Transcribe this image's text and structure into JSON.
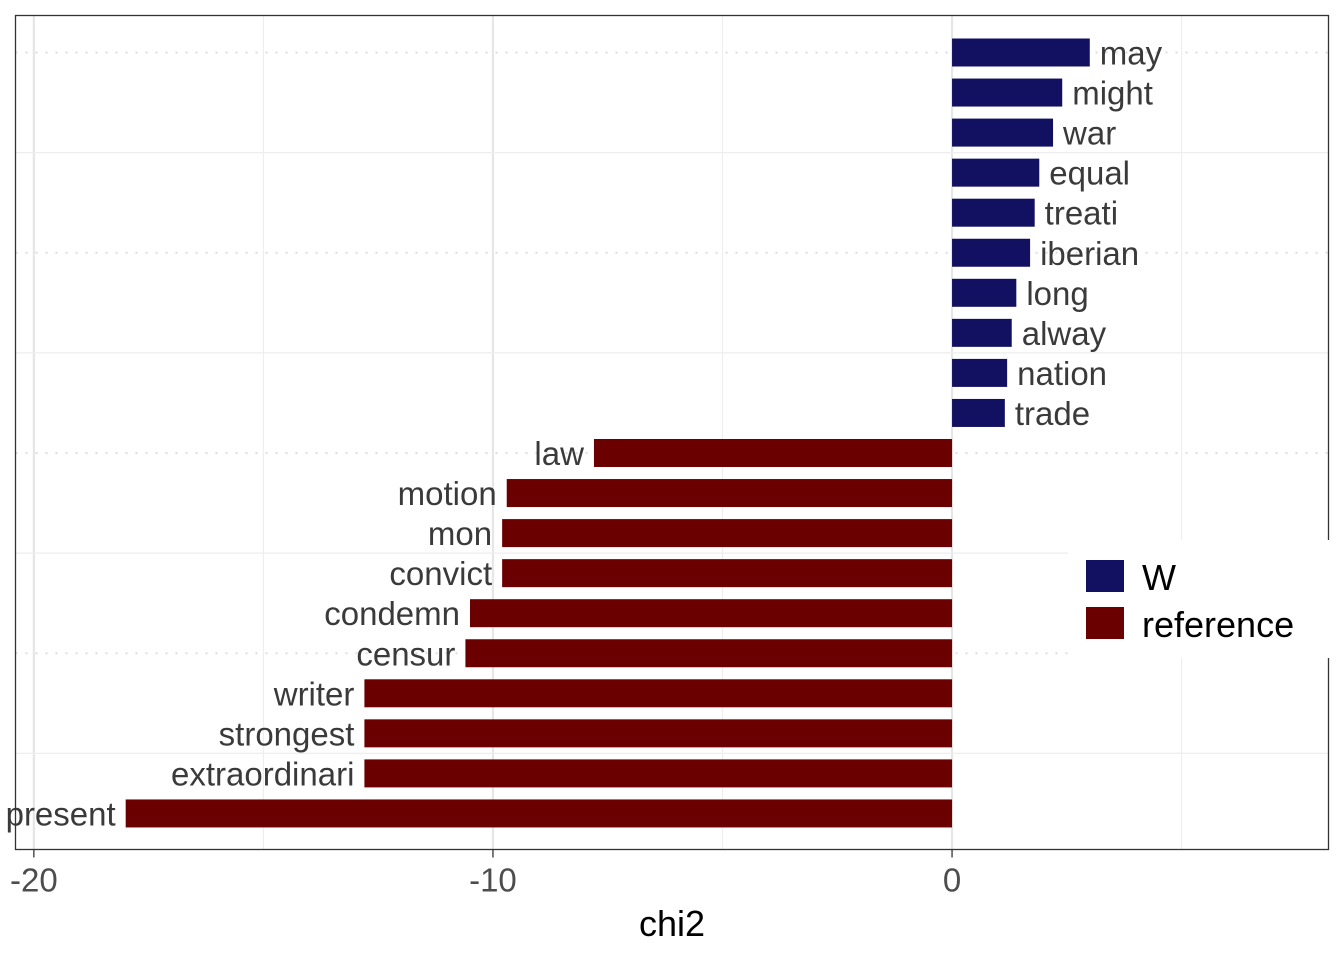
{
  "chart_data": {
    "type": "bar",
    "orientation": "horizontal",
    "title": "",
    "xlabel": "chi2",
    "ylabel": "",
    "xlim": [
      -20.4,
      8.2
    ],
    "xticks": [
      -20,
      -10,
      0
    ],
    "xtick_labels": [
      "-20",
      "-10",
      "0"
    ],
    "grid": true,
    "legend_position": "right",
    "categories": [
      "may",
      "might",
      "war",
      "equal",
      "treati",
      "iberian",
      "long",
      "alway",
      "nation",
      "trade",
      "law",
      "motion",
      "mon",
      "convict",
      "condemn",
      "censur",
      "writer",
      "strongest",
      "extraordinari",
      "present"
    ],
    "values": [
      3.0,
      2.4,
      2.2,
      1.9,
      1.8,
      1.7,
      1.4,
      1.3,
      1.2,
      1.15,
      -7.8,
      -9.7,
      -9.8,
      -9.8,
      -10.5,
      -10.6,
      -12.8,
      -12.8,
      -12.8,
      -18.0
    ],
    "groups": [
      "W",
      "W",
      "W",
      "W",
      "W",
      "W",
      "W",
      "W",
      "W",
      "W",
      "reference",
      "reference",
      "reference",
      "reference",
      "reference",
      "reference",
      "reference",
      "reference",
      "reference",
      "reference"
    ],
    "series": [
      {
        "name": "W",
        "color": "#121060"
      },
      {
        "name": "reference",
        "color": "#6b0000"
      }
    ]
  }
}
